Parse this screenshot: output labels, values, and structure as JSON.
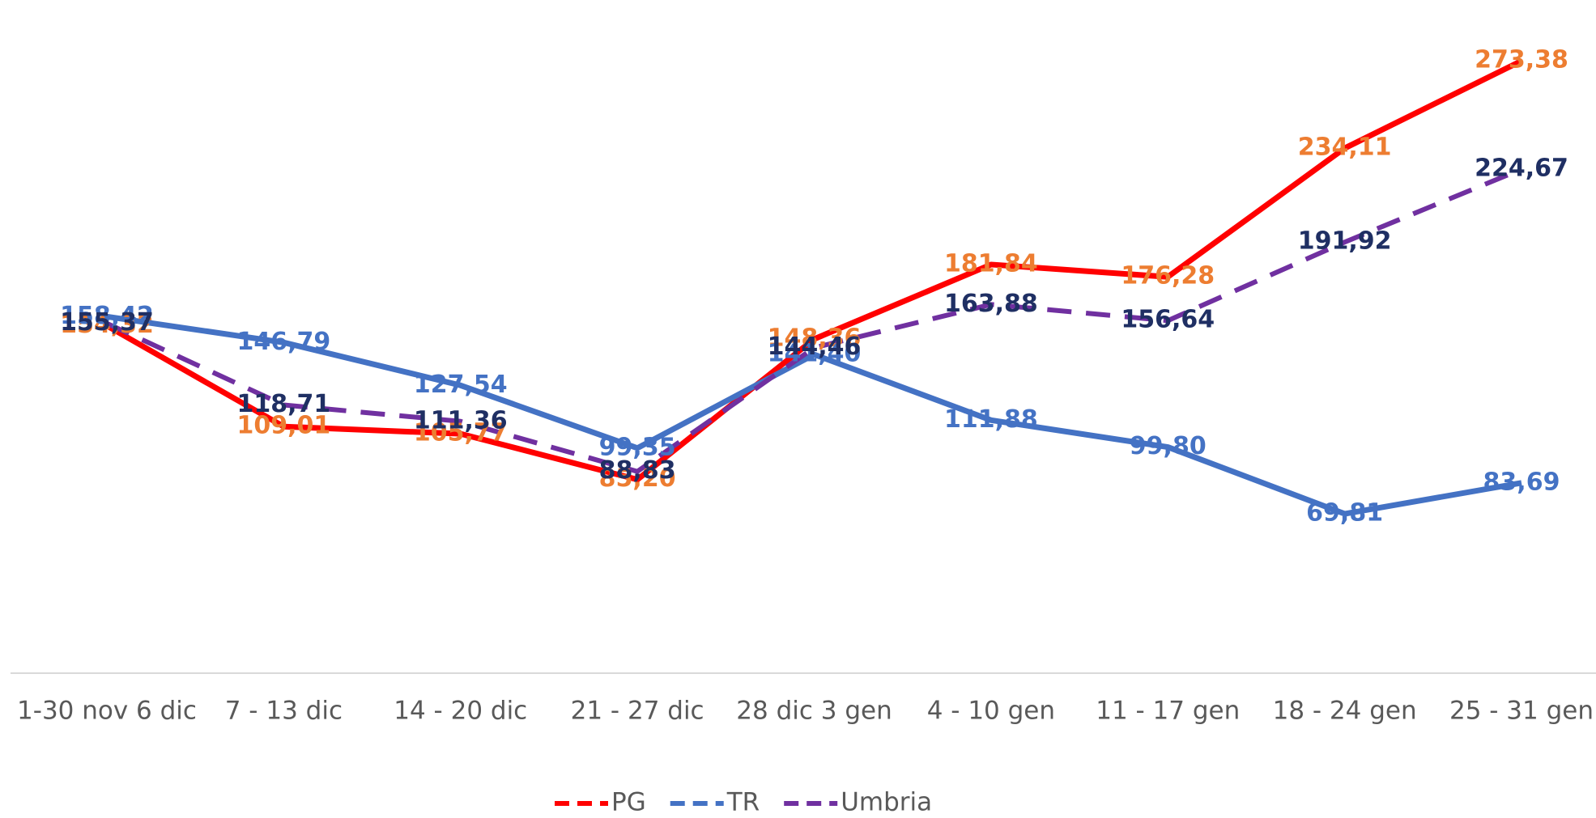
{
  "chart_data": {
    "type": "line",
    "categories": [
      "1-30 nov 6 dic",
      "7 - 13 dic",
      "14 - 20 dic",
      "21 - 27 dic",
      "28 dic 3 gen",
      "4 - 10 gen",
      "11 - 17 gen",
      "18 - 24 gen",
      "25 - 31 gen"
    ],
    "ylim": [
      0,
      300
    ],
    "series": [
      {
        "name": "PG",
        "color": "#ff0000",
        "label_color": "#ed7d31",
        "dashed": false,
        "values": [
          154.32,
          109.01,
          105.77,
          85.2,
          148.36,
          181.84,
          176.28,
          234.11,
          273.38
        ],
        "value_labels": [
          "154,32",
          "109,01",
          "105,77",
          "85,20",
          "148,36",
          "181,84",
          "176,28",
          "234,11",
          "273,38"
        ]
      },
      {
        "name": "TR",
        "color": "#4472c4",
        "label_color": "#4472c4",
        "dashed": false,
        "values": [
          158.42,
          146.79,
          127.54,
          99.35,
          141.4,
          111.88,
          99.8,
          69.81,
          83.69
        ],
        "value_labels": [
          "158,42",
          "146,79",
          "127,54",
          "99,35",
          "141,40",
          "111,88",
          "99,80",
          "69,81",
          "83,69"
        ]
      },
      {
        "name": "Umbria",
        "color": "#7030a0",
        "label_color": "#1f2f63",
        "dashed": true,
        "values": [
          155.37,
          118.71,
          111.36,
          88.83,
          144.46,
          163.88,
          156.64,
          191.92,
          224.67
        ],
        "value_labels": [
          "155,37",
          "118,71",
          "111,36",
          "88,83",
          "144,46",
          "163,88",
          "156,64",
          "191,92",
          "224,67"
        ]
      }
    ]
  }
}
